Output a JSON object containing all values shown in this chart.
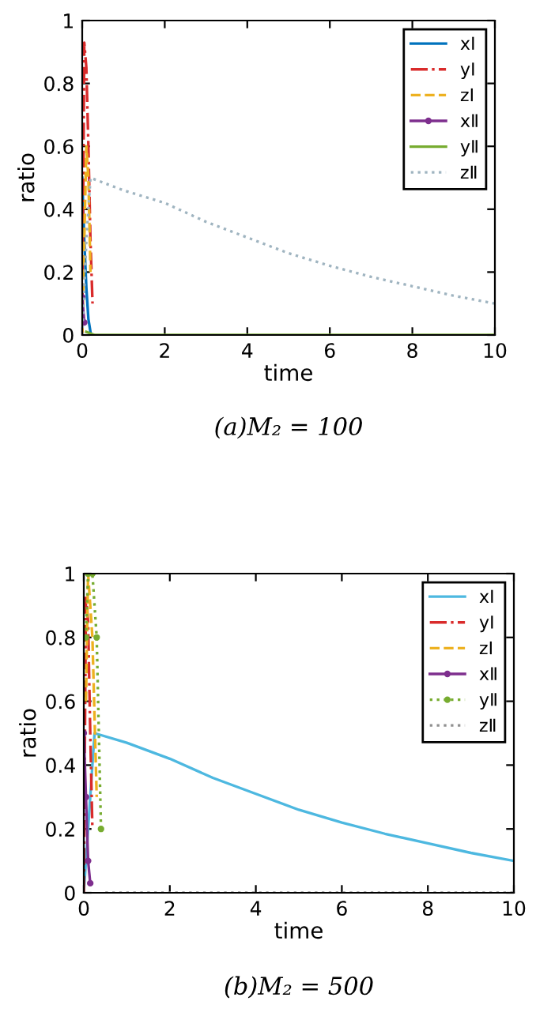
{
  "chart_data": [
    {
      "type": "line",
      "title": "(a)M₂ = 100",
      "xlabel": "time",
      "ylabel": "ratio",
      "xlim": [
        0,
        10
      ],
      "ylim": [
        0,
        1
      ],
      "xticks": [
        0,
        2,
        4,
        6,
        8,
        10
      ],
      "yticks": [
        0,
        0.2,
        0.4,
        0.6,
        0.8,
        1
      ],
      "grid": false,
      "legend": "top right",
      "series": [
        {
          "name": "xⅠ",
          "color": "#0072bd",
          "line_style": "solid",
          "marker": "none",
          "x": [
            0,
            0.05,
            0.1,
            0.15,
            0.2
          ],
          "values": [
            0.5,
            0.3,
            0.15,
            0.05,
            0.01
          ]
        },
        {
          "name": "yⅠ",
          "color": "#d92b2b",
          "line_style": "dashdot",
          "marker": "none",
          "x": [
            0,
            0.05,
            0.1,
            0.15,
            0.2,
            0.25
          ],
          "values": [
            0,
            0.93,
            0.85,
            0.6,
            0.3,
            0.1
          ]
        },
        {
          "name": "zⅠ",
          "color": "#edb120",
          "line_style": "dashed",
          "marker": "none",
          "x": [
            0,
            0.05,
            0.1,
            0.15,
            0.2
          ],
          "values": [
            0,
            0.3,
            0.6,
            0.5,
            0.2
          ]
        },
        {
          "name": "xⅡ",
          "color": "#7e2f8e",
          "line_style": "solid",
          "marker": "circle",
          "x": [
            0,
            0.05
          ],
          "values": [
            0.12,
            0.04
          ]
        },
        {
          "name": "yⅡ",
          "color": "#77ac30",
          "line_style": "solid",
          "marker": "none",
          "x": [
            0.1,
            0.3,
            10
          ],
          "values": [
            0.01,
            0,
            0
          ]
        },
        {
          "name": "zⅡ",
          "color": "#9fb4c0",
          "line_style": "dotted",
          "marker": "none",
          "x": [
            0,
            0.1,
            0.2,
            1,
            2,
            3,
            4,
            5,
            6,
            7,
            8,
            9,
            10
          ],
          "values": [
            0,
            0.3,
            0.5,
            0.46,
            0.42,
            0.36,
            0.31,
            0.26,
            0.22,
            0.185,
            0.155,
            0.125,
            0.1
          ]
        }
      ]
    },
    {
      "type": "line",
      "title": "(b)M₂ = 500",
      "xlabel": "time",
      "ylabel": "ratio",
      "xlim": [
        0,
        10
      ],
      "ylim": [
        0,
        1
      ],
      "xticks": [
        0,
        2,
        4,
        6,
        8,
        10
      ],
      "yticks": [
        0,
        0.2,
        0.4,
        0.6,
        0.8,
        1
      ],
      "grid": false,
      "legend": "top right",
      "series": [
        {
          "name": "xⅠ",
          "color": "#4db8e0",
          "line_style": "solid",
          "marker": "none",
          "x": [
            0,
            0.1,
            0.25,
            1,
            2,
            3,
            4,
            5,
            6,
            7,
            8,
            9,
            10
          ],
          "values": [
            0,
            0.2,
            0.5,
            0.47,
            0.42,
            0.36,
            0.31,
            0.26,
            0.22,
            0.185,
            0.155,
            0.125,
            0.1
          ]
        },
        {
          "name": "yⅠ",
          "color": "#d92b2b",
          "line_style": "dashdot",
          "marker": "none",
          "x": [
            0,
            0.05,
            0.1,
            0.15,
            0.2
          ],
          "values": [
            0,
            0.93,
            0.85,
            0.5,
            0.2
          ]
        },
        {
          "name": "zⅠ",
          "color": "#edb120",
          "line_style": "dashed",
          "marker": "none",
          "x": [
            0.05,
            0.1,
            0.2,
            0.3
          ],
          "values": [
            0.6,
            1,
            0.8,
            0.3
          ]
        },
        {
          "name": "xⅡ",
          "color": "#7e2f8e",
          "line_style": "solid",
          "marker": "circle",
          "x": [
            0,
            0.05,
            0.1,
            0.15
          ],
          "values": [
            0.5,
            0.3,
            0.1,
            0.03
          ]
        },
        {
          "name": "yⅡ",
          "color": "#77ac30",
          "line_style": "dotted",
          "marker": "circle",
          "x": [
            0.05,
            0.1,
            0.2,
            0.3,
            0.4
          ],
          "values": [
            0.8,
            1,
            1,
            0.8,
            0.2
          ]
        },
        {
          "name": "zⅡ",
          "color": "#909090",
          "line_style": "dotted",
          "marker": "none",
          "x": [
            0.5,
            10
          ],
          "values": [
            0,
            0
          ]
        }
      ]
    }
  ]
}
